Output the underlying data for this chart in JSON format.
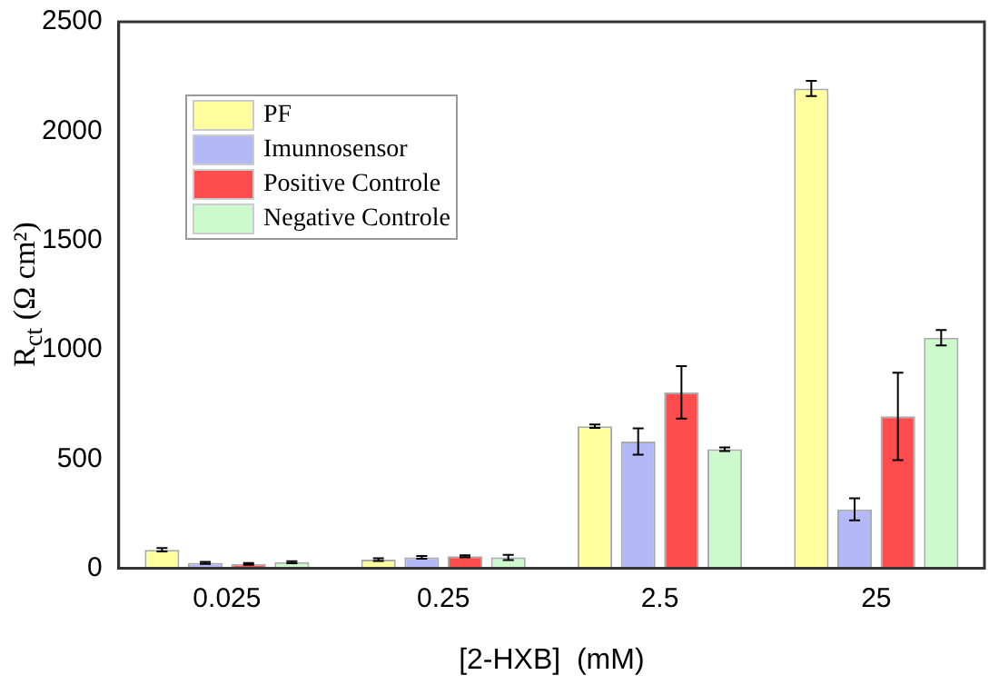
{
  "chart_data": {
    "type": "bar",
    "xlabel": "[2-HXB]  (mM)",
    "ylabel": "R$_{ct}$  (Ω cm²)",
    "categories": [
      "0.025",
      "0.25",
      "2.5",
      "25"
    ],
    "series": [
      {
        "name": "PF",
        "color": "#ffffa0",
        "values": [
          85,
          40,
          650,
          2195
        ],
        "errors": [
          8,
          6,
          8,
          35
        ]
      },
      {
        "name": "Imunnosensor",
        "color": "#b3b8f7",
        "values": [
          25,
          50,
          580,
          270
        ],
        "errors": [
          5,
          6,
          60,
          50
        ]
      },
      {
        "name": "Positive Controle",
        "color": "#ff4d4d",
        "values": [
          20,
          55,
          805,
          695
        ],
        "errors": [
          4,
          5,
          120,
          200
        ]
      },
      {
        "name": "Negative Controle",
        "color": "#ccfacc",
        "values": [
          28,
          50,
          545,
          1055
        ],
        "errors": [
          5,
          12,
          8,
          35
        ]
      }
    ],
    "ylim": [
      0,
      2500
    ],
    "yticks": [
      0,
      500,
      1000,
      1500,
      2000,
      2500
    ],
    "grid": false,
    "legend": "top left"
  }
}
